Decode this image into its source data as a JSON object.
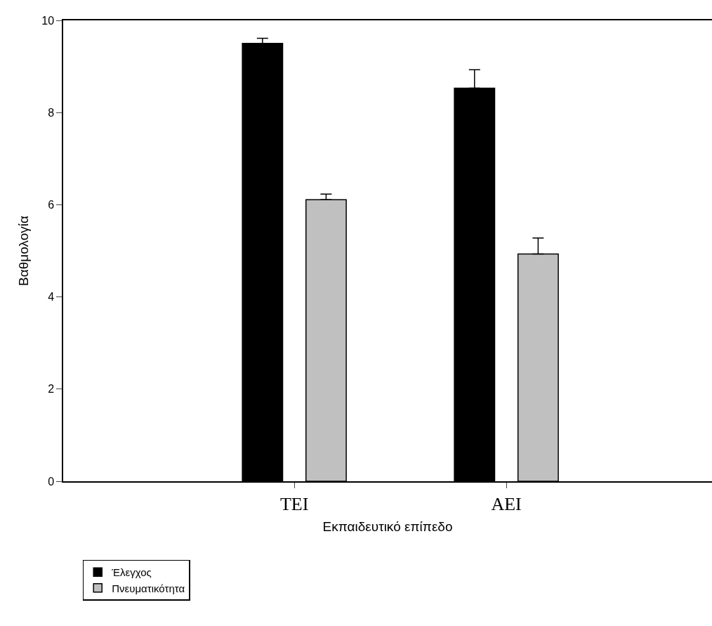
{
  "chart_data": {
    "type": "bar",
    "xlabel": "Εκπαιδευτικό επίπεδο",
    "ylabel": "Βαθμολογία",
    "categories": [
      "TEI",
      "AEI"
    ],
    "series": [
      {
        "name": "Έλεγχος",
        "color": "#000000",
        "values": [
          9.5,
          8.53
        ],
        "errors": [
          [
            9.5,
            9.61
          ],
          [
            8.53,
            8.93
          ]
        ]
      },
      {
        "name": "Πνευματικότητα",
        "color": "#c0c0c0",
        "values": [
          6.11,
          4.93
        ],
        "errors": [
          [
            6.11,
            6.23
          ],
          [
            4.93,
            5.28
          ]
        ]
      }
    ],
    "ylim": [
      0,
      10
    ],
    "yticks": [
      0,
      2,
      4,
      6,
      8,
      10
    ],
    "legend": "bottom left"
  }
}
